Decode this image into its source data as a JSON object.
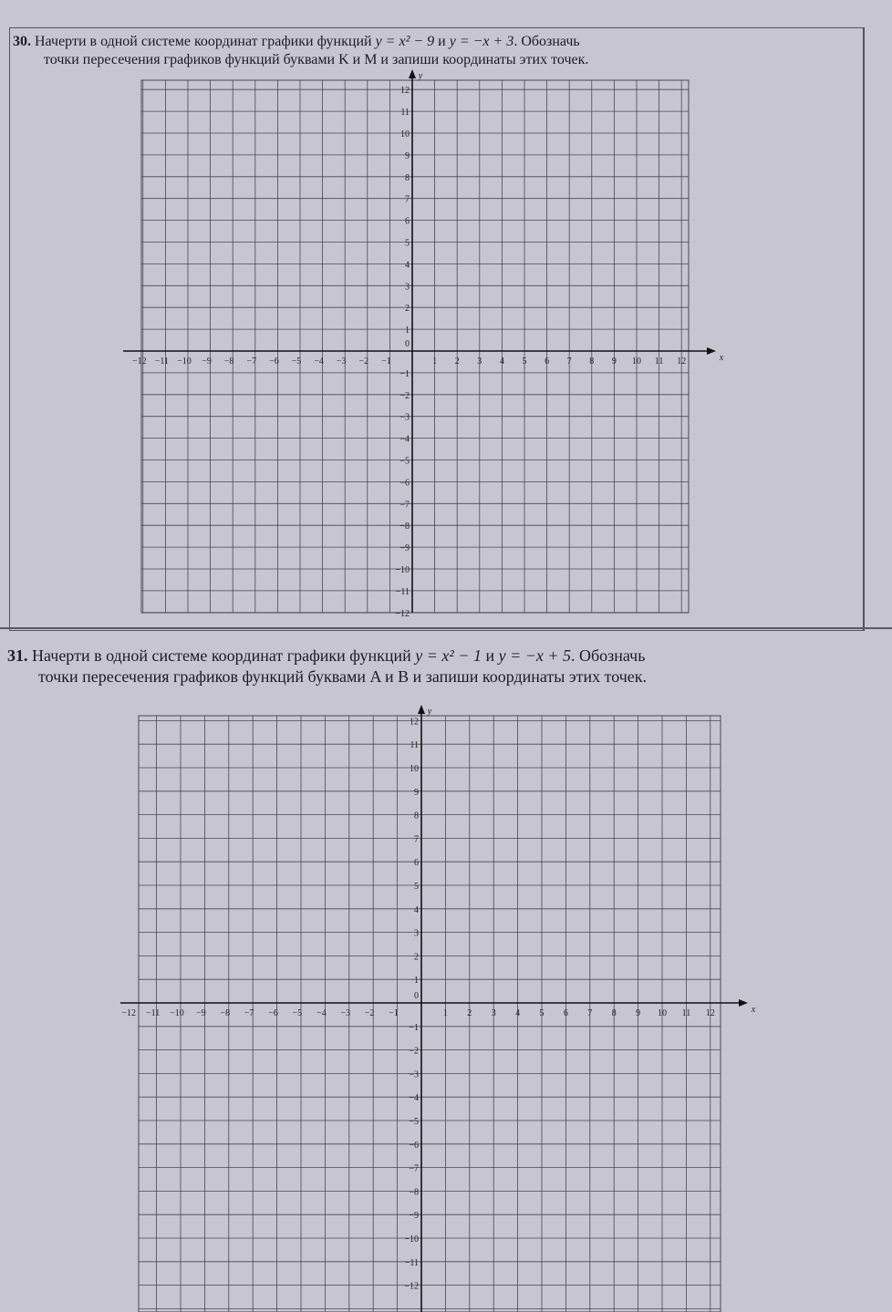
{
  "problems": [
    {
      "number": "30.",
      "line1_a": "Начерти в одной системе координат графики функций ",
      "f1": "y = x² − 9",
      "and": " и ",
      "f2": "y = −x + 3",
      "line1_b": ". Обозначь",
      "line2": "точки пересечения графиков функций буквами K и M и запиши координаты этих точек.",
      "x_label": "x",
      "y_label": "y",
      "origin_label": "0",
      "x_ticks": [
        -12,
        -11,
        -10,
        -9,
        -8,
        -7,
        -6,
        -5,
        -4,
        -3,
        -2,
        -1,
        1,
        2,
        3,
        4,
        5,
        6,
        7,
        8,
        9,
        10,
        11,
        12
      ],
      "y_ticks": [
        12,
        11,
        10,
        9,
        8,
        7,
        6,
        5,
        4,
        3,
        2,
        1,
        -1,
        -2,
        -3,
        -4,
        -5,
        -6,
        -7,
        -8,
        -9,
        -10,
        -11,
        -12
      ]
    },
    {
      "number": "31.",
      "line1_a": "Начерти в одной системе координат графики функций ",
      "f1": "y = x² − 1",
      "and": " и ",
      "f2": "y = −x + 5",
      "line1_b": ". Обозначь",
      "line2": "точки пересечения графиков функций буквами A и B и запиши координаты этих точек.",
      "x_label": "x",
      "y_label": "y",
      "origin_label": "0",
      "x_ticks": [
        -12,
        -11,
        -10,
        -9,
        -8,
        -7,
        -6,
        -5,
        -4,
        -3,
        -2,
        -1,
        1,
        2,
        3,
        4,
        5,
        6,
        7,
        8,
        9,
        10,
        11,
        12
      ],
      "y_ticks": [
        12,
        11,
        10,
        9,
        8,
        7,
        6,
        5,
        4,
        3,
        2,
        1,
        -1,
        -2,
        -3,
        -4,
        -5,
        -6,
        -7,
        -8,
        -9,
        -10,
        -11,
        -12
      ]
    }
  ],
  "colors": {
    "paper": "#c8c5d3",
    "grid": "#4a4752",
    "text": "#1d1b26"
  }
}
